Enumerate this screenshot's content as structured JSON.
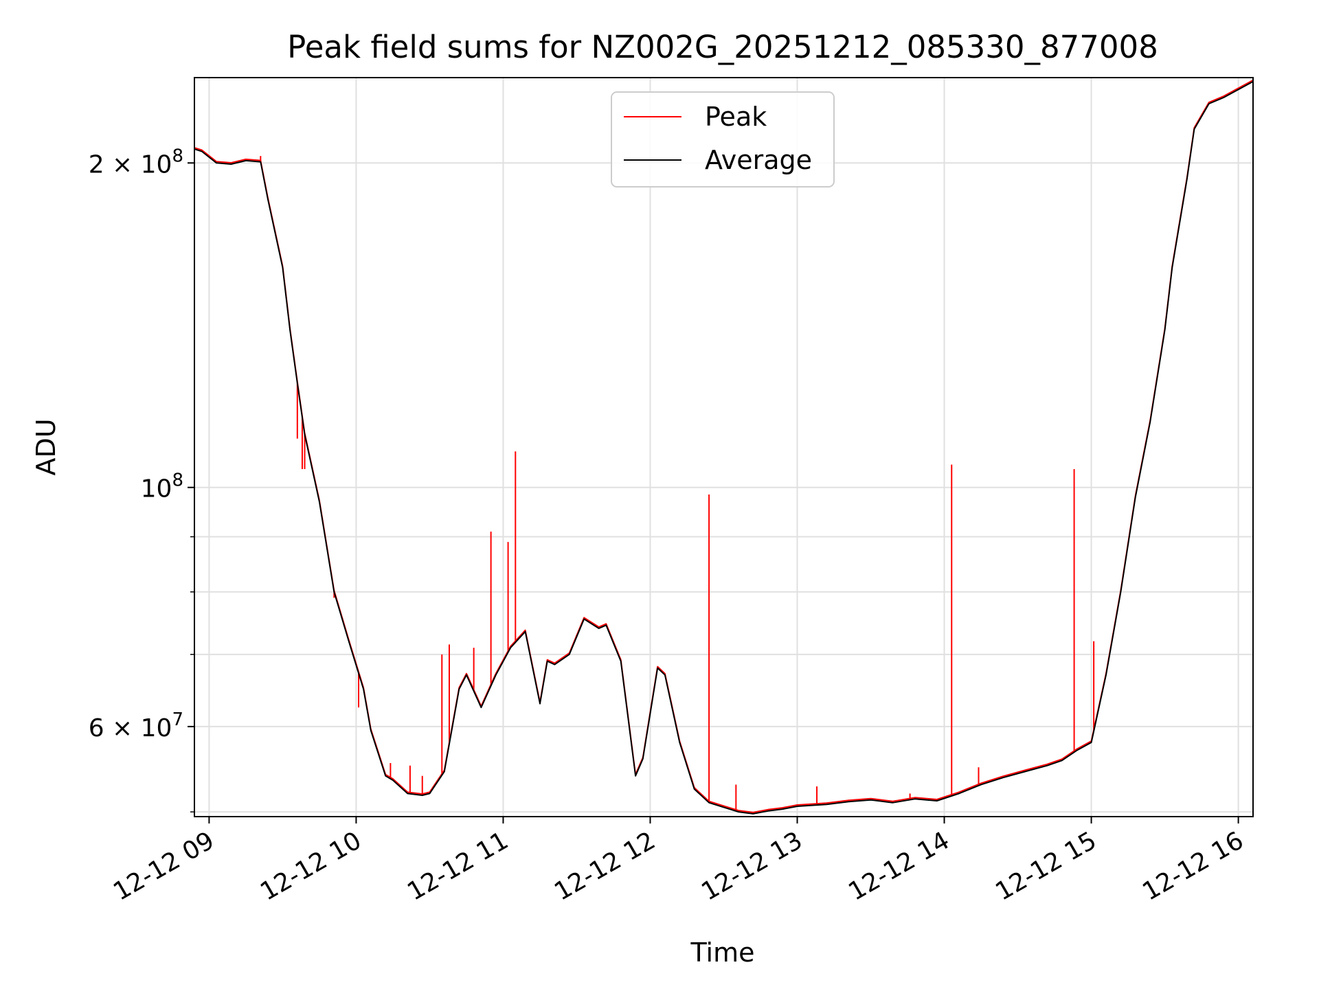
{
  "chart_data": {
    "type": "line",
    "title": "Peak field sums for NZ002G_20251212_085330_877008",
    "xlabel": "Time",
    "ylabel": "ADU",
    "y_scale": "log",
    "ylim": [
      49500000,
      240000000
    ],
    "xlim": [
      "2025-12-12 08:54",
      "2025-12-12 16:06"
    ],
    "grid": true,
    "legend_position": "upper center",
    "x_ticks": [
      "12-12 09",
      "12-12 10",
      "12-12 11",
      "12-12 12",
      "12-12 13",
      "12-12 14",
      "12-12 15",
      "12-12 16"
    ],
    "y_ticks": [
      {
        "value": 200000000,
        "base": "2 × 10",
        "exp": "8"
      },
      {
        "value": 100000000,
        "base": "10",
        "exp": "8"
      },
      {
        "value": 60000000,
        "base": "6 × 10",
        "exp": "7"
      }
    ],
    "series": [
      {
        "name": "Average",
        "color": "#000000",
        "x": [
          "2025-12-12 08:54",
          "2025-12-12 08:57",
          "2025-12-12 09:03",
          "2025-12-12 09:09",
          "2025-12-12 09:15",
          "2025-12-12 09:21",
          "2025-12-12 09:24",
          "2025-12-12 09:30",
          "2025-12-12 09:33",
          "2025-12-12 09:36",
          "2025-12-12 09:39",
          "2025-12-12 09:45",
          "2025-12-12 09:51",
          "2025-12-12 09:57",
          "2025-12-12 10:03",
          "2025-12-12 10:06",
          "2025-12-12 10:12",
          "2025-12-12 10:15",
          "2025-12-12 10:21",
          "2025-12-12 10:27",
          "2025-12-12 10:30",
          "2025-12-12 10:36",
          "2025-12-12 10:42",
          "2025-12-12 10:45",
          "2025-12-12 10:51",
          "2025-12-12 10:57",
          "2025-12-12 11:03",
          "2025-12-12 11:09",
          "2025-12-12 11:15",
          "2025-12-12 11:18",
          "2025-12-12 11:21",
          "2025-12-12 11:27",
          "2025-12-12 11:33",
          "2025-12-12 11:39",
          "2025-12-12 11:42",
          "2025-12-12 11:48",
          "2025-12-12 11:54",
          "2025-12-12 11:57",
          "2025-12-12 12:03",
          "2025-12-12 12:06",
          "2025-12-12 12:12",
          "2025-12-12 12:18",
          "2025-12-12 12:24",
          "2025-12-12 12:30",
          "2025-12-12 12:36",
          "2025-12-12 12:42",
          "2025-12-12 12:48",
          "2025-12-12 12:54",
          "2025-12-12 13:00",
          "2025-12-12 13:12",
          "2025-12-12 13:21",
          "2025-12-12 13:30",
          "2025-12-12 13:39",
          "2025-12-12 13:48",
          "2025-12-12 13:57",
          "2025-12-12 14:06",
          "2025-12-12 14:15",
          "2025-12-12 14:24",
          "2025-12-12 14:33",
          "2025-12-12 14:42",
          "2025-12-12 14:48",
          "2025-12-12 14:54",
          "2025-12-12 15:00",
          "2025-12-12 15:06",
          "2025-12-12 15:12",
          "2025-12-12 15:18",
          "2025-12-12 15:24",
          "2025-12-12 15:30",
          "2025-12-12 15:33",
          "2025-12-12 15:39",
          "2025-12-12 15:42",
          "2025-12-12 15:48",
          "2025-12-12 15:54",
          "2025-12-12 16:06"
        ],
        "values": [
          206000000,
          205000000,
          200000000,
          199500000,
          201000000,
          200500000,
          185000000,
          160000000,
          140000000,
          125000000,
          112000000,
          97000000,
          80000000,
          72000000,
          65000000,
          59500000,
          54000000,
          53500000,
          52000000,
          51800000,
          52000000,
          54500000,
          65000000,
          67000000,
          62500000,
          67000000,
          71000000,
          73500000,
          63000000,
          69000000,
          68500000,
          70000000,
          75500000,
          74000000,
          74500000,
          69000000,
          54000000,
          56000000,
          68000000,
          67000000,
          58000000,
          52500000,
          51000000,
          50500000,
          50000000,
          49800000,
          50100000,
          50300000,
          50600000,
          50800000,
          51100000,
          51300000,
          51000000,
          51400000,
          51200000,
          52000000,
          53000000,
          53800000,
          54500000,
          55200000,
          55800000,
          57000000,
          58000000,
          67000000,
          80000000,
          98000000,
          115000000,
          140000000,
          160000000,
          193000000,
          215000000,
          227000000,
          230000000,
          238000000
        ]
      },
      {
        "name": "Peak",
        "color": "#ff0000",
        "spikes": [
          {
            "x": "2025-12-12 09:21",
            "value": 203000000
          },
          {
            "x": "2025-12-12 09:36",
            "value": 111000000
          },
          {
            "x": "2025-12-12 09:38",
            "value": 104000000
          },
          {
            "x": "2025-12-12 09:39",
            "value": 104000000
          },
          {
            "x": "2025-12-12 09:51",
            "value": 79000000
          },
          {
            "x": "2025-12-12 10:01",
            "value": 62500000
          },
          {
            "x": "2025-12-12 10:14",
            "value": 55500000
          },
          {
            "x": "2025-12-12 10:22",
            "value": 55200000
          },
          {
            "x": "2025-12-12 10:27",
            "value": 54000000
          },
          {
            "x": "2025-12-12 10:35",
            "value": 70000000
          },
          {
            "x": "2025-12-12 10:38",
            "value": 71500000
          },
          {
            "x": "2025-12-12 10:48",
            "value": 71000000
          },
          {
            "x": "2025-12-12 10:55",
            "value": 91000000
          },
          {
            "x": "2025-12-12 11:02",
            "value": 89000000
          },
          {
            "x": "2025-12-12 11:05",
            "value": 108000000
          },
          {
            "x": "2025-12-12 12:24",
            "value": 98500000
          },
          {
            "x": "2025-12-12 12:35",
            "value": 53000000
          },
          {
            "x": "2025-12-12 13:08",
            "value": 52800000
          },
          {
            "x": "2025-12-12 13:46",
            "value": 52000000
          },
          {
            "x": "2025-12-12 14:03",
            "value": 105000000
          },
          {
            "x": "2025-12-12 14:14",
            "value": 55000000
          },
          {
            "x": "2025-12-12 14:53",
            "value": 104000000
          },
          {
            "x": "2025-12-12 15:01",
            "value": 72000000
          }
        ]
      }
    ]
  }
}
